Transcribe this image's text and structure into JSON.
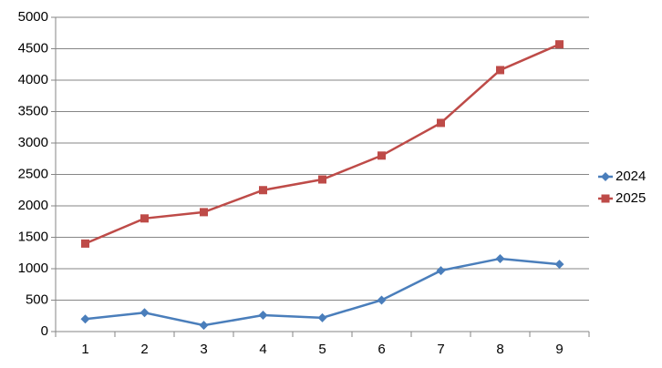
{
  "chart_data": {
    "type": "line",
    "categories": [
      "1",
      "2",
      "3",
      "4",
      "5",
      "6",
      "7",
      "8",
      "9"
    ],
    "series": [
      {
        "name": "2024",
        "color": "#4a7ebb",
        "marker": "diamond",
        "values": [
          200,
          300,
          100,
          260,
          220,
          500,
          970,
          1160,
          1070
        ]
      },
      {
        "name": "2025",
        "color": "#be4b48",
        "marker": "square",
        "values": [
          1400,
          1800,
          1900,
          2250,
          2420,
          2800,
          3320,
          4160,
          4570
        ]
      }
    ],
    "ylim": [
      0,
      5000
    ],
    "yticks": [
      0,
      500,
      1000,
      1500,
      2000,
      2500,
      3000,
      3500,
      4000,
      4500,
      5000
    ],
    "grid": true,
    "legend": "right"
  }
}
